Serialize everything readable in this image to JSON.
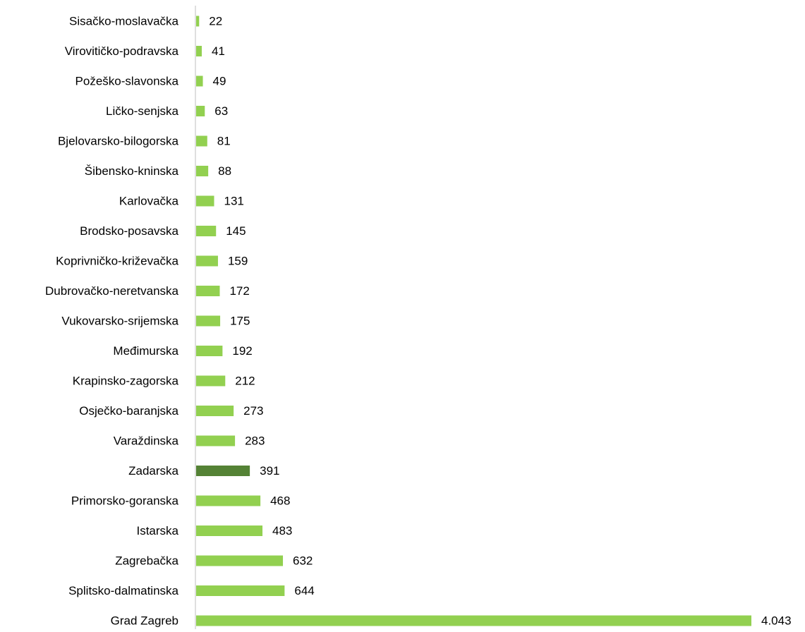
{
  "chart_data": {
    "type": "bar",
    "orientation": "horizontal",
    "categories": [
      "Sisačko-moslavačka",
      "Virovitičko-podravska",
      "Požeško-slavonska",
      "Ličko-senjska",
      "Bjelovarsko-bilogorska",
      "Šibensko-kninska",
      "Karlovačka",
      "Brodsko-posavska",
      "Koprivničko-križevačka",
      "Dubrovačko-neretvanska",
      "Vukovarsko-srijemska",
      "Međimurska",
      "Krapinsko-zagorska",
      "Osječko-baranjska",
      "Varaždinska",
      "Zadarska",
      "Primorsko-goranska",
      "Istarska",
      "Zagrebačka",
      "Splitsko-dalmatinska",
      "Grad Zagreb"
    ],
    "values": [
      22,
      41,
      49,
      63,
      81,
      88,
      131,
      145,
      159,
      172,
      175,
      192,
      212,
      273,
      283,
      391,
      468,
      483,
      632,
      644,
      4043
    ],
    "value_labels": [
      "22",
      "41",
      "49",
      "63",
      "81",
      "88",
      "131",
      "145",
      "159",
      "172",
      "175",
      "192",
      "212",
      "273",
      "283",
      "391",
      "468",
      "483",
      "632",
      "644",
      "4.043"
    ],
    "colors": [
      "#92d050",
      "#92d050",
      "#92d050",
      "#92d050",
      "#92d050",
      "#92d050",
      "#92d050",
      "#92d050",
      "#92d050",
      "#92d050",
      "#92d050",
      "#92d050",
      "#92d050",
      "#92d050",
      "#92d050",
      "#548235",
      "#92d050",
      "#92d050",
      "#92d050",
      "#92d050",
      "#92d050"
    ]
  }
}
